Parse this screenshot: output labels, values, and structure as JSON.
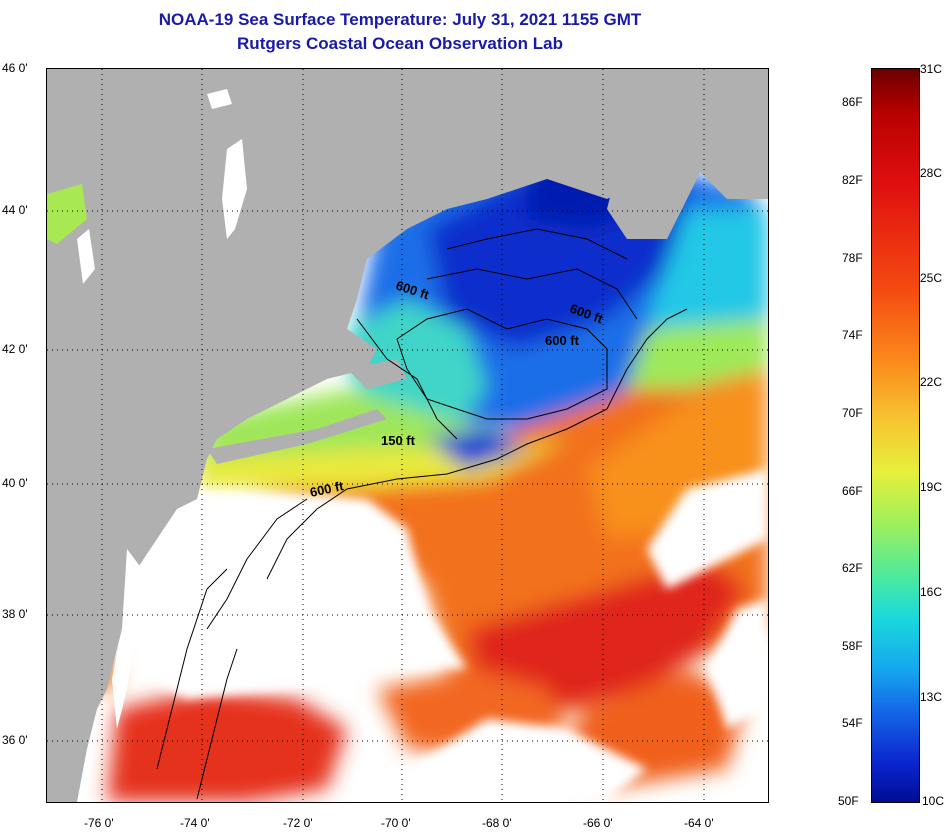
{
  "header": {
    "title": "NOAA-19 Sea Surface Temperature:  July 31, 2021 1155 GMT",
    "subtitle": "Rutgers Coastal Ocean Observation Lab"
  },
  "map": {
    "lat_labels": [
      "46 0'",
      "44 0'",
      "42 0'",
      "40 0'",
      "38 0'",
      "36 0'"
    ],
    "lon_labels": [
      "-76 0'",
      "-74 0'",
      "-72 0'",
      "-70 0'",
      "-68 0'",
      "-66 0'",
      "-64 0'"
    ],
    "depth_labels": [
      "600 ft",
      "600 ft",
      "600 ft",
      "150 ft",
      "600 ft"
    ]
  },
  "colorbar": {
    "fahrenheit_labels": [
      "86F",
      "82F",
      "78F",
      "74F",
      "70F",
      "66F",
      "62F",
      "58F",
      "54F",
      "50F"
    ],
    "celsius_labels": [
      "31C",
      "28C",
      "25C",
      "22C",
      "19C",
      "16C",
      "13C",
      "10C"
    ]
  },
  "colors": {
    "title": "#1a1aa8",
    "land": "#b0b0b0",
    "cloud_or_no_data": "#ffffff"
  }
}
